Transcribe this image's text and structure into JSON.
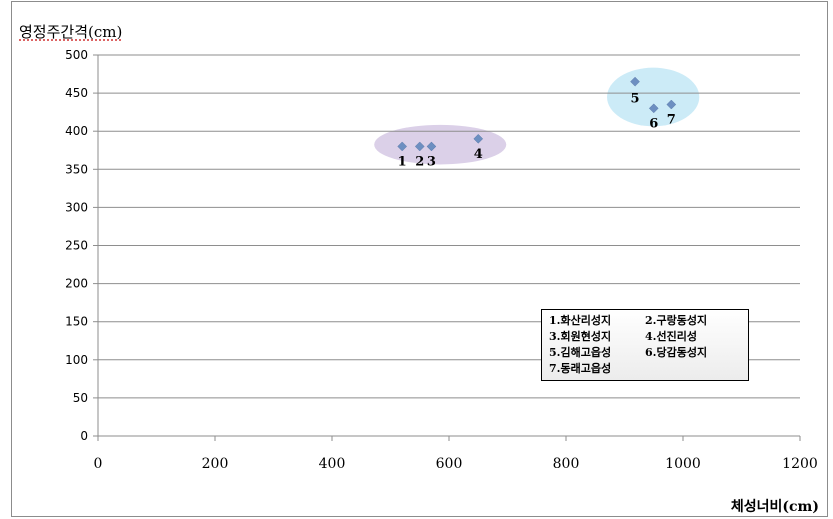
{
  "chart_data": {
    "type": "scatter",
    "ylabel": "영정주간격(cm)",
    "xlabel": "체성너비(cm)",
    "xlim": [
      0,
      1200
    ],
    "ylim": [
      0,
      500
    ],
    "x_ticks": [
      "0",
      "200",
      "400",
      "600",
      "800",
      "1000",
      "1200"
    ],
    "y_ticks": [
      "0",
      "50",
      "100",
      "150",
      "200",
      "250",
      "300",
      "350",
      "400",
      "450",
      "500"
    ],
    "grid": "horizontal",
    "legend_placement": "bottom-right",
    "marker_color": "#6d8fc1",
    "points": [
      {
        "label": "1",
        "x": 520,
        "y": 380
      },
      {
        "label": "2",
        "x": 550,
        "y": 380
      },
      {
        "label": "3",
        "x": 570,
        "y": 380
      },
      {
        "label": "4",
        "x": 650,
        "y": 390
      },
      {
        "label": "5",
        "x": 918,
        "y": 465
      },
      {
        "label": "6",
        "x": 950,
        "y": 430
      },
      {
        "label": "7",
        "x": 980,
        "y": 435
      }
    ],
    "clusters": [
      {
        "members": [
          "1",
          "2",
          "3",
          "4"
        ],
        "color": "#d7cbe6"
      },
      {
        "members": [
          "5",
          "6",
          "7"
        ],
        "color": "#c6e9f6"
      }
    ],
    "legend_items": [
      "1.화산리성지",
      "2.구랑동성지",
      "3.회원현성지",
      "4.선진리성",
      "5.김해고읍성",
      "6.당감동성지",
      "7.동래고읍성"
    ]
  }
}
